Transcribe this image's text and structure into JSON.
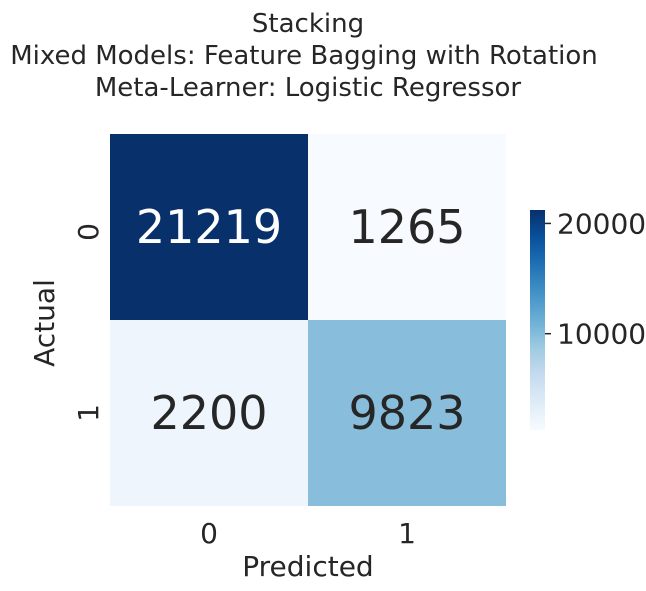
{
  "chart_data": {
    "type": "heatmap",
    "title_lines": [
      "Stacking",
      "Mixed Models: Feature Bagging with Rotation",
      "Meta-Learner: Logistic Regressor"
    ],
    "xlabel": "Predicted",
    "ylabel": "Actual",
    "x_categories": [
      "0",
      "1"
    ],
    "y_categories": [
      "0",
      "1"
    ],
    "values": [
      [
        21219,
        1265
      ],
      [
        2200,
        9823
      ]
    ],
    "cell_labels": [
      [
        "21219",
        "1265"
      ],
      [
        "2200",
        "9823"
      ]
    ],
    "colormap": "Blues",
    "color_range": [
      1265,
      21219
    ],
    "colorbar": {
      "ticks": [
        10000,
        20000
      ],
      "tick_labels": [
        "10000",
        "20000"
      ]
    },
    "text_colors": {
      "dark_cell": "#ffffff",
      "light_cell": "#262626"
    }
  }
}
